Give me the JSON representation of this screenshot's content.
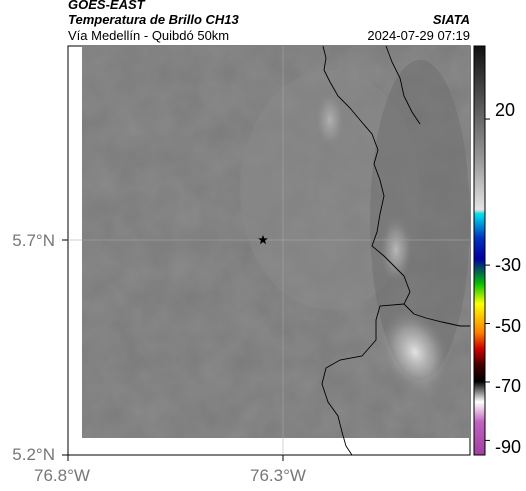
{
  "header": {
    "source": "GOES-EAST",
    "product": "Temperatura de Brillo CH13",
    "organization": "SIATA",
    "subtitle": "Vía Medellín - Quibdó 50km",
    "datetime": "2024-07-29 07:19"
  },
  "map": {
    "latitude_labels": [
      "5.7°N",
      "5.2°N"
    ],
    "longitude_labels": [
      "76.8°W",
      "76.3°W"
    ],
    "marker": "star-icon"
  },
  "colorbar": {
    "tick_labels": [
      "20",
      "-30",
      "-50",
      "-70",
      "-90"
    ],
    "tick_values": [
      20,
      -30,
      -50,
      -70,
      -90
    ],
    "range": [
      -95,
      45
    ],
    "colors": {
      "warm": "#111111",
      "cold_gray": "#e0e0e0",
      "cyan": "#00d0e0",
      "blue": "#0000a0",
      "green": "#00c000",
      "yellow": "#ffff00",
      "red": "#d00000",
      "dark": "#000000",
      "magenta": "#c040c0"
    }
  }
}
